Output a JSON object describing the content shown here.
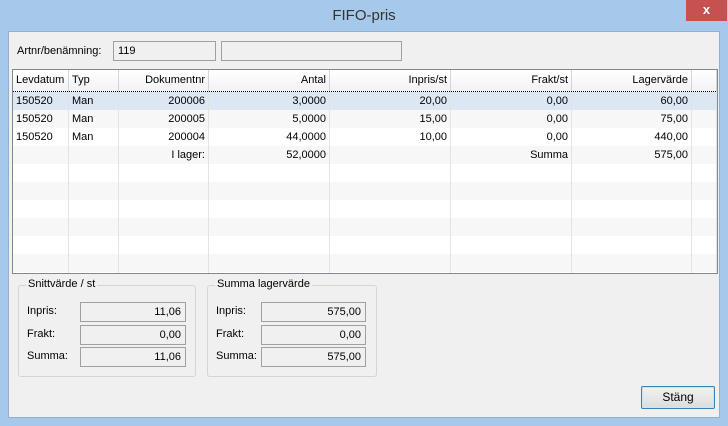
{
  "window": {
    "title": "FIFO-pris",
    "close": "x"
  },
  "artnr": {
    "label": "Artnr/benämning:",
    "number": "119",
    "name": ""
  },
  "grid": {
    "columns": [
      "Levdatum",
      "Typ",
      "Dokumentnr",
      "Antal",
      "Inpris/st",
      "Frakt/st",
      "Lagervärde"
    ],
    "rows": [
      [
        "150520",
        "Man",
        "200006",
        "3,0000",
        "20,00",
        "0,00",
        "60,00"
      ],
      [
        "150520",
        "Man",
        "200005",
        "5,0000",
        "15,00",
        "0,00",
        "75,00"
      ],
      [
        "150520",
        "Man",
        "200004",
        "44,0000",
        "10,00",
        "0,00",
        "440,00"
      ],
      [
        "",
        "",
        "I lager:",
        "52,0000",
        "",
        "Summa",
        "575,00"
      ]
    ]
  },
  "avg": {
    "title": "Snittvärde / st",
    "inpris_label": "Inpris:",
    "inpris": "11,06",
    "frakt_label": "Frakt:",
    "frakt": "0,00",
    "summa_label": "Summa:",
    "summa": "11,06"
  },
  "total": {
    "title": "Summa lagervärde",
    "inpris_label": "Inpris:",
    "inpris": "575,00",
    "frakt_label": "Frakt:",
    "frakt": "0,00",
    "summa_label": "Summa:",
    "summa": "575,00"
  },
  "close_button": "Stäng"
}
